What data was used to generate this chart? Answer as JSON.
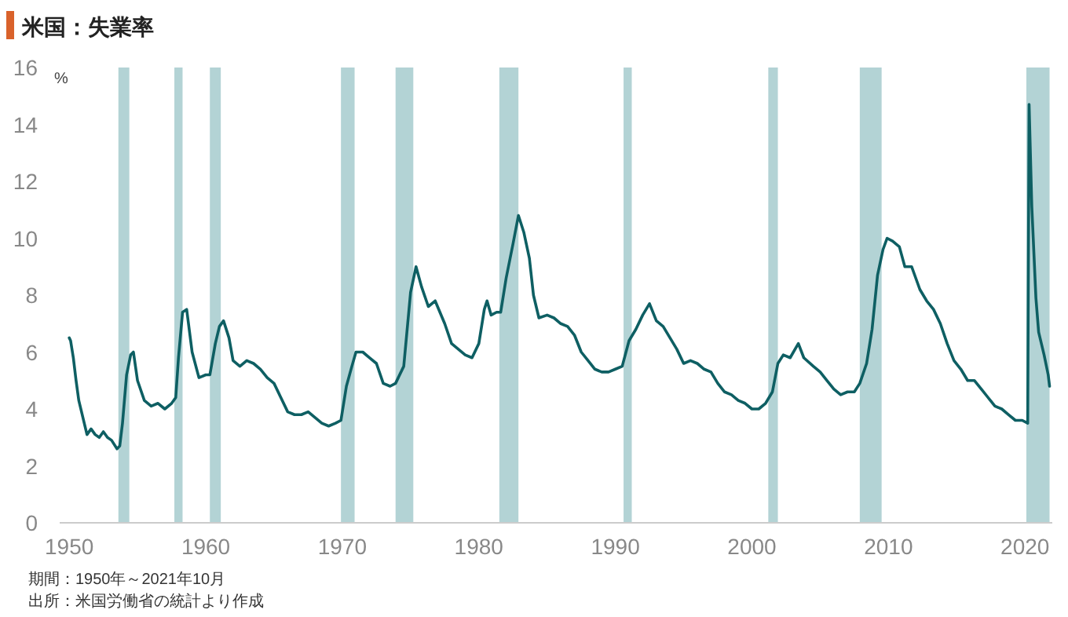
{
  "chart_data": {
    "type": "line",
    "title": "米国：失業率",
    "ylabel": "%",
    "annotations": [
      "期間：1950年～2021年10月",
      "出所：米国労働省の統計より作成"
    ],
    "xlim": [
      1949.3,
      2022.0
    ],
    "ylim": [
      0,
      16
    ],
    "xticks": [
      1950,
      1960,
      1970,
      1980,
      1990,
      2000,
      2010,
      2020
    ],
    "yticks": [
      0,
      2,
      4,
      6,
      8,
      10,
      12,
      14,
      16
    ],
    "bands": [
      {
        "axis": "x",
        "from": 1953.6,
        "to": 1954.4,
        "color": "#b3d3d5"
      },
      {
        "axis": "x",
        "from": 1957.7,
        "to": 1958.3,
        "color": "#b3d3d5"
      },
      {
        "axis": "x",
        "from": 1960.3,
        "to": 1961.1,
        "color": "#b3d3d5"
      },
      {
        "axis": "x",
        "from": 1969.9,
        "to": 1970.9,
        "color": "#b3d3d5"
      },
      {
        "axis": "x",
        "from": 1973.9,
        "to": 1975.2,
        "color": "#b3d3d5"
      },
      {
        "axis": "x",
        "from": 1981.5,
        "to": 1982.9,
        "color": "#b3d3d5"
      },
      {
        "axis": "x",
        "from": 1990.6,
        "to": 1991.2,
        "color": "#b3d3d5"
      },
      {
        "axis": "x",
        "from": 2001.2,
        "to": 2001.9,
        "color": "#b3d3d5"
      },
      {
        "axis": "x",
        "from": 2007.9,
        "to": 2009.5,
        "color": "#b3d3d5"
      },
      {
        "axis": "x",
        "from": 2020.1,
        "to": 2021.8,
        "color": "#b3d3d5"
      }
    ],
    "x": [
      1950.0,
      1950.1,
      1950.3,
      1950.5,
      1950.7,
      1951.0,
      1951.3,
      1951.6,
      1951.9,
      1952.2,
      1952.5,
      1952.8,
      1953.1,
      1953.5,
      1953.7,
      1953.9,
      1954.2,
      1954.5,
      1954.7,
      1955.0,
      1955.5,
      1956.0,
      1956.5,
      1957.0,
      1957.5,
      1957.8,
      1958.0,
      1958.3,
      1958.6,
      1959.0,
      1959.5,
      1960.0,
      1960.3,
      1960.7,
      1961.0,
      1961.3,
      1961.7,
      1962.0,
      1962.5,
      1963.0,
      1963.5,
      1964.0,
      1964.5,
      1965.0,
      1965.5,
      1966.0,
      1966.5,
      1967.0,
      1967.5,
      1968.0,
      1968.5,
      1969.0,
      1969.5,
      1969.9,
      1970.3,
      1970.7,
      1971.0,
      1971.5,
      1972.0,
      1972.5,
      1973.0,
      1973.5,
      1973.9,
      1974.5,
      1975.0,
      1975.4,
      1975.8,
      1976.3,
      1976.8,
      1977.5,
      1978.0,
      1978.5,
      1979.0,
      1979.5,
      1980.0,
      1980.4,
      1980.6,
      1980.9,
      1981.3,
      1981.6,
      1982.0,
      1982.5,
      1982.9,
      1983.3,
      1983.7,
      1984.0,
      1984.4,
      1985.0,
      1985.5,
      1986.0,
      1986.5,
      1987.0,
      1987.5,
      1988.0,
      1988.5,
      1989.0,
      1989.5,
      1990.0,
      1990.5,
      1991.0,
      1991.5,
      1992.0,
      1992.5,
      1993.0,
      1993.5,
      1994.0,
      1994.5,
      1995.0,
      1995.5,
      1996.0,
      1996.5,
      1997.0,
      1997.5,
      1998.0,
      1998.5,
      1999.0,
      1999.5,
      2000.0,
      2000.5,
      2001.0,
      2001.5,
      2001.9,
      2002.3,
      2002.8,
      2003.4,
      2003.8,
      2004.5,
      2005.0,
      2005.5,
      2006.0,
      2006.5,
      2007.0,
      2007.5,
      2007.9,
      2008.4,
      2008.8,
      2009.2,
      2009.6,
      2009.9,
      2010.3,
      2010.8,
      2011.2,
      2011.7,
      2012.3,
      2012.8,
      2013.3,
      2013.8,
      2014.3,
      2014.8,
      2015.3,
      2015.8,
      2016.3,
      2016.8,
      2017.3,
      2017.8,
      2018.3,
      2018.8,
      2019.3,
      2019.8,
      2020.2,
      2020.3,
      2020.5,
      2020.8,
      2021.0,
      2021.4,
      2021.7,
      2021.8
    ],
    "series": [
      {
        "color": "#0e5f63",
        "values": [
          6.5,
          6.4,
          5.8,
          5.0,
          4.3,
          3.7,
          3.1,
          3.3,
          3.1,
          3.0,
          3.2,
          3.0,
          2.9,
          2.6,
          2.7,
          3.5,
          5.2,
          5.9,
          6.0,
          5.0,
          4.3,
          4.1,
          4.2,
          4.0,
          4.2,
          4.4,
          5.8,
          7.4,
          7.5,
          6.0,
          5.1,
          5.2,
          5.2,
          6.3,
          6.9,
          7.1,
          6.5,
          5.7,
          5.5,
          5.7,
          5.6,
          5.4,
          5.1,
          4.9,
          4.4,
          3.9,
          3.8,
          3.8,
          3.9,
          3.7,
          3.5,
          3.4,
          3.5,
          3.6,
          4.8,
          5.5,
          6.0,
          6.0,
          5.8,
          5.6,
          4.9,
          4.8,
          4.9,
          5.5,
          8.1,
          9.0,
          8.3,
          7.6,
          7.8,
          7.0,
          6.3,
          6.1,
          5.9,
          5.8,
          6.3,
          7.5,
          7.8,
          7.3,
          7.4,
          7.4,
          8.6,
          9.8,
          10.8,
          10.2,
          9.3,
          8.0,
          7.2,
          7.3,
          7.2,
          7.0,
          6.9,
          6.6,
          6.0,
          5.7,
          5.4,
          5.3,
          5.3,
          5.4,
          5.5,
          6.4,
          6.8,
          7.3,
          7.7,
          7.1,
          6.9,
          6.5,
          6.1,
          5.6,
          5.7,
          5.6,
          5.4,
          5.3,
          4.9,
          4.6,
          4.5,
          4.3,
          4.2,
          4.0,
          4.0,
          4.2,
          4.6,
          5.6,
          5.9,
          5.8,
          6.3,
          5.8,
          5.5,
          5.3,
          5.0,
          4.7,
          4.5,
          4.6,
          4.6,
          4.9,
          5.6,
          6.8,
          8.7,
          9.6,
          10.0,
          9.9,
          9.7,
          9.0,
          9.0,
          8.2,
          7.8,
          7.5,
          7.0,
          6.3,
          5.7,
          5.4,
          5.0,
          5.0,
          4.7,
          4.4,
          4.1,
          4.0,
          3.8,
          3.6,
          3.6,
          3.5,
          14.7,
          11.1,
          7.9,
          6.7,
          5.9,
          5.2,
          4.8
        ]
      }
    ]
  }
}
